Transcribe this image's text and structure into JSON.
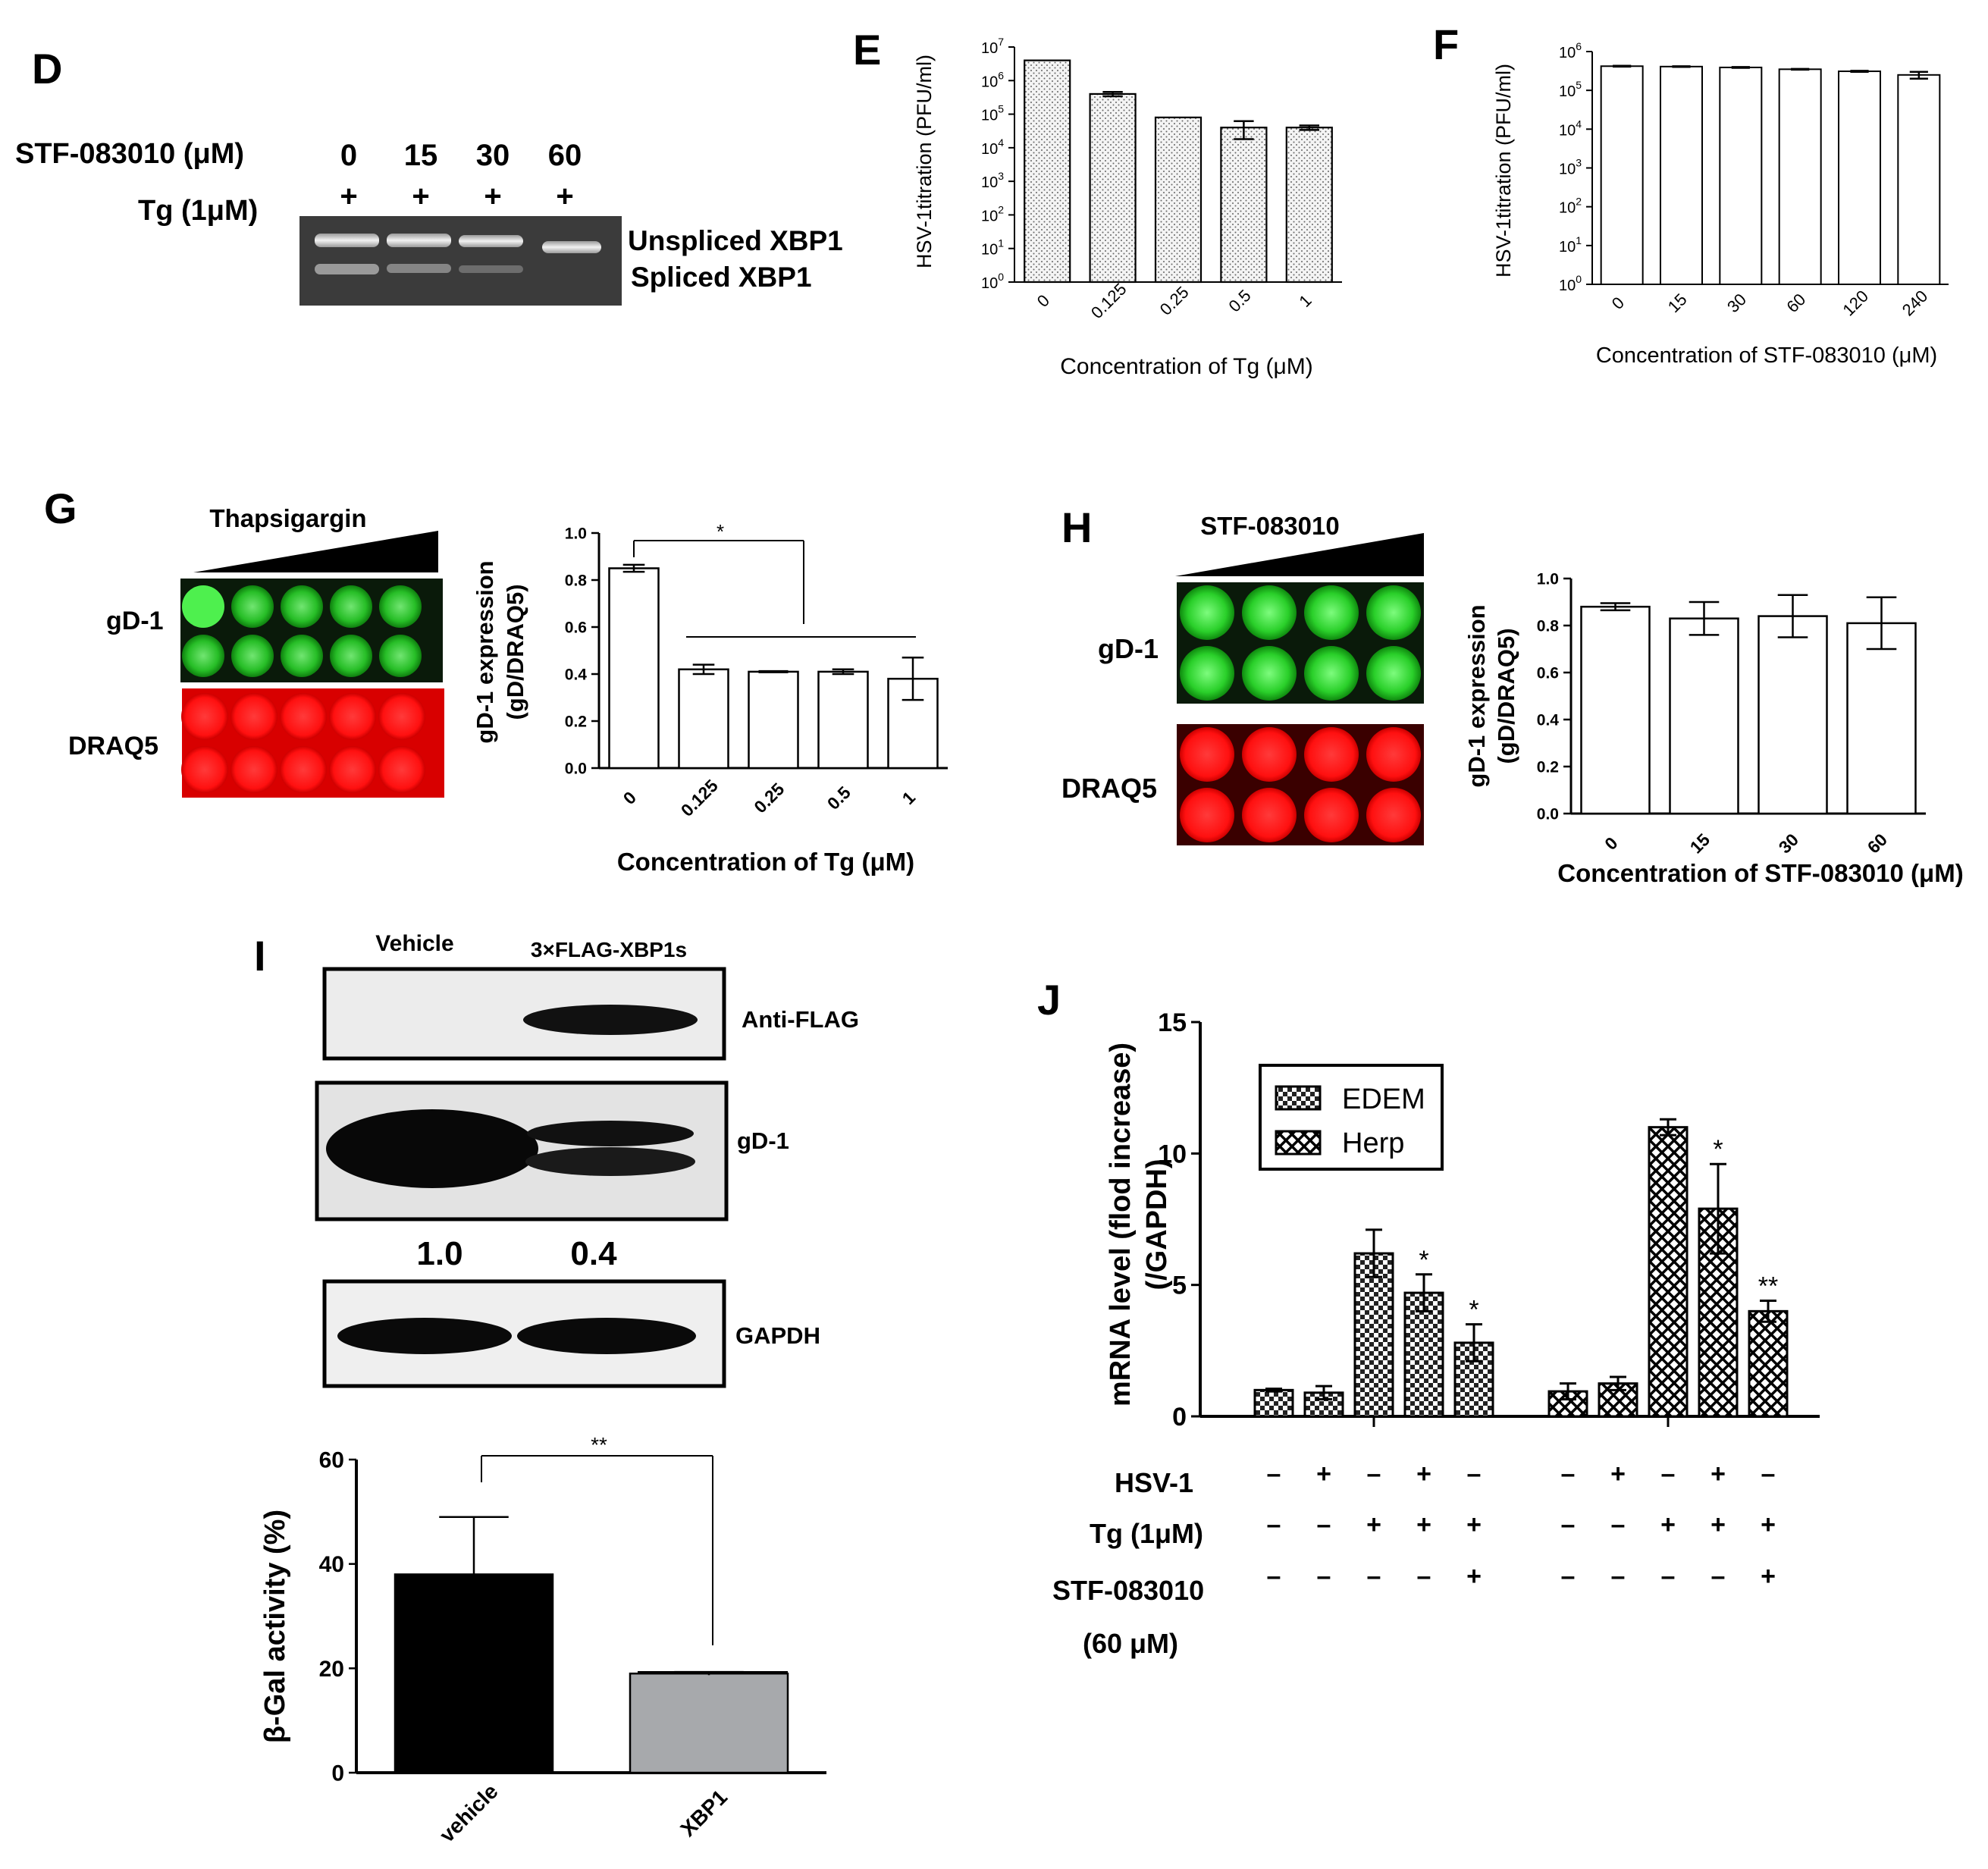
{
  "panel_D": {
    "letter": "D",
    "row1_label": "STF-083010 (μM)",
    "doses": [
      "0",
      "15",
      "30",
      "60"
    ],
    "row2_label": "Tg (1μM)",
    "tg_marks": [
      "+",
      "+",
      "+",
      "+"
    ],
    "band_upper": "Unspliced XBP1",
    "band_lower": "Spliced XBP1"
  },
  "panel_G": {
    "letter": "G",
    "gradient_label": "Thapsigargin",
    "row_green": "gD-1",
    "row_red": "DRAQ5"
  },
  "panel_H": {
    "letter": "H",
    "gradient_label": "STF-083010",
    "row_green": "gD-1",
    "row_red": "DRAQ5"
  },
  "panel_I": {
    "letter": "I",
    "lane1": "Vehicle",
    "lane2": "3×FLAG-XBP1s",
    "blot1": "Anti-FLAG",
    "blot2": "gD-1",
    "q1": "1.0",
    "q2": "0.4",
    "blot3": "GAPDH"
  },
  "panel_J_extra": {
    "letter": "J",
    "row_hsv": "HSV-1",
    "row_tg": "Tg (1μM)",
    "row_stf": "STF-083010",
    "row_stf2": "(60 μM)",
    "hsv_signs": [
      "–",
      "+",
      "–",
      "+",
      "–",
      "–",
      "+",
      "–",
      "+",
      "–"
    ],
    "tg_signs": [
      "–",
      "–",
      "+",
      "+",
      "+",
      "–",
      "–",
      "+",
      "+",
      "+"
    ],
    "stf_signs": [
      "–",
      "–",
      "–",
      "–",
      "+",
      "–",
      "–",
      "–",
      "–",
      "+"
    ]
  },
  "colors": {
    "gel_bg": "#3a3a3a",
    "green_fluor": "#2bd62b",
    "red_fluor": "#ff1a1a",
    "bar_black": "#000000",
    "bar_grey": "#a7a9ac"
  },
  "chart_data": [
    {
      "id": "E",
      "letter": "E",
      "type": "bar",
      "categories": [
        "0",
        "0.125",
        "0.25",
        "0.5",
        "1"
      ],
      "values": [
        4000000,
        400000,
        80000,
        40000,
        40000
      ],
      "errors": [
        0,
        60000,
        0,
        22000,
        6000
      ],
      "ylabel": "HSV-1titration (PFU/ml)",
      "xlabel": "Concentration of Tg (μM)",
      "scale": "log",
      "ylim": [
        1,
        10000000
      ],
      "ytick_base": "10",
      "ytick_exps": [
        "0",
        "1",
        "2",
        "3",
        "4",
        "5",
        "6",
        "7"
      ],
      "fill": "dotted"
    },
    {
      "id": "F",
      "letter": "F",
      "type": "bar",
      "categories": [
        "0",
        "15",
        "30",
        "60",
        "120",
        "240"
      ],
      "values": [
        420000,
        410000,
        390000,
        350000,
        310000,
        250000
      ],
      "errors": [
        10000,
        8000,
        10000,
        8000,
        10000,
        50000
      ],
      "ylabel": "HSV-1titration (PFU/ml)",
      "xlabel": "Concentration of STF-083010 (μM)",
      "scale": "log",
      "ylim": [
        1,
        1000000
      ],
      "ytick_base": "10",
      "ytick_exps": [
        "0",
        "1",
        "2",
        "3",
        "4",
        "5",
        "6"
      ],
      "fill": "white"
    },
    {
      "id": "G",
      "type": "bar",
      "categories": [
        "0",
        "0.125",
        "0.25",
        "0.5",
        "1"
      ],
      "values": [
        0.85,
        0.42,
        0.41,
        0.41,
        0.38
      ],
      "errors": [
        0.015,
        0.02,
        0,
        0.01,
        0.09
      ],
      "ylabel": "gD-1 expression",
      "ylabel2": "(gD/DRAQ5)",
      "xlabel": "Concentration of Tg (μM)",
      "ylim": [
        0,
        1.0
      ],
      "yticks": [
        "0.0",
        "0.2",
        "0.4",
        "0.6",
        "0.8",
        "1.0"
      ],
      "annotation": "*"
    },
    {
      "id": "H",
      "type": "bar",
      "categories": [
        "0",
        "15",
        "30",
        "60"
      ],
      "values": [
        0.88,
        0.83,
        0.84,
        0.81
      ],
      "errors": [
        0.015,
        0.07,
        0.09,
        0.11
      ],
      "ylabel": "gD-1 expression",
      "ylabel2": "(gD/DRAQ5)",
      "xlabel": "Concentration of STF-083010 (μM)",
      "ylim": [
        0,
        1.0
      ],
      "yticks": [
        "0.0",
        "0.2",
        "0.4",
        "0.6",
        "0.8",
        "1.0"
      ]
    },
    {
      "id": "I",
      "type": "bar",
      "categories": [
        "vehicle",
        "XBP1"
      ],
      "values": [
        38,
        19
      ],
      "errors": [
        11,
        0.3
      ],
      "ylabel": "β-Gal activity (%)",
      "ylim": [
        0,
        60
      ],
      "yticks": [
        "0",
        "20",
        "40",
        "60"
      ],
      "annotation": "**"
    },
    {
      "id": "J",
      "type": "bar",
      "ylabel": "mRNA level (flod increase)",
      "ylabel2": "(/GAPDH)",
      "ylim": [
        0,
        15
      ],
      "yticks": [
        "0",
        "5",
        "10",
        "15"
      ],
      "series": [
        {
          "name": "EDEM",
          "values": [
            1.0,
            0.9,
            6.2,
            4.7,
            2.8
          ],
          "errors": [
            0.05,
            0.25,
            0.9,
            0.7,
            0.7
          ],
          "stars": [
            "",
            "",
            "",
            "*",
            "*"
          ]
        },
        {
          "name": "Herp",
          "values": [
            0.95,
            1.25,
            11.0,
            7.9,
            4.0
          ],
          "errors": [
            0.3,
            0.25,
            0.3,
            1.7,
            0.4
          ],
          "stars": [
            "",
            "",
            "",
            "*",
            "**"
          ]
        }
      ]
    }
  ]
}
